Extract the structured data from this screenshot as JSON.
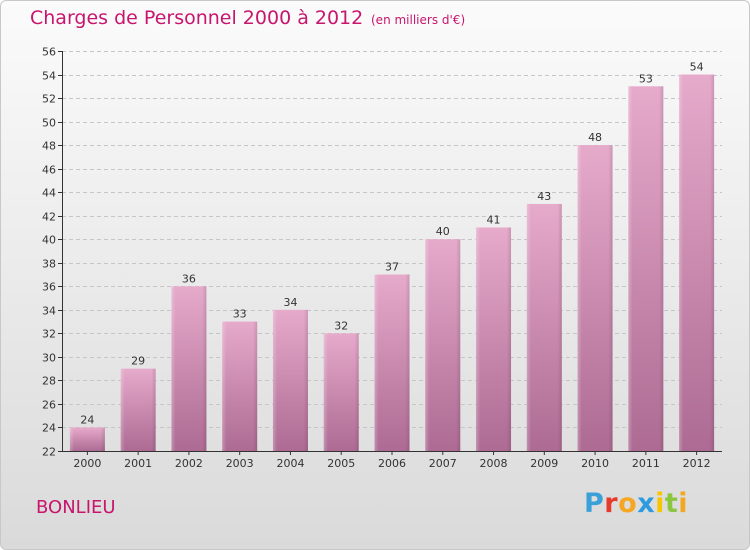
{
  "header": {
    "title": "Charges de Personnel 2000 à 2012",
    "subtitle": "(en milliers d'€)"
  },
  "footer": {
    "commune": "BONLIEU",
    "logo": "Proxiti",
    "logo_colors": [
      "#3aa1d8",
      "#e63a2a",
      "#f5a623",
      "#2e9be0",
      "#f7c600",
      "#8cc63f",
      "#f5a623"
    ]
  },
  "colors": {
    "title": "#c8156d",
    "bar_top": "#e6aacb",
    "bar_bottom": "#ad6b93",
    "grid": "#c6c6c6",
    "axis": "#333333"
  },
  "chart_data": {
    "type": "bar",
    "title": "Charges de Personnel 2000 à 2012",
    "subtitle": "(en milliers d'€)",
    "categories": [
      "2000",
      "2001",
      "2002",
      "2003",
      "2004",
      "2005",
      "2006",
      "2007",
      "2008",
      "2009",
      "2010",
      "2011",
      "2012"
    ],
    "values": [
      24,
      29,
      36,
      33,
      34,
      32,
      37,
      40,
      41,
      43,
      48,
      53,
      54
    ],
    "ylim": [
      22,
      56
    ],
    "yticks": [
      22,
      24,
      26,
      28,
      30,
      32,
      34,
      36,
      38,
      40,
      42,
      44,
      46,
      48,
      50,
      52,
      54,
      56
    ],
    "grid": true,
    "xlabel": "",
    "ylabel": ""
  }
}
